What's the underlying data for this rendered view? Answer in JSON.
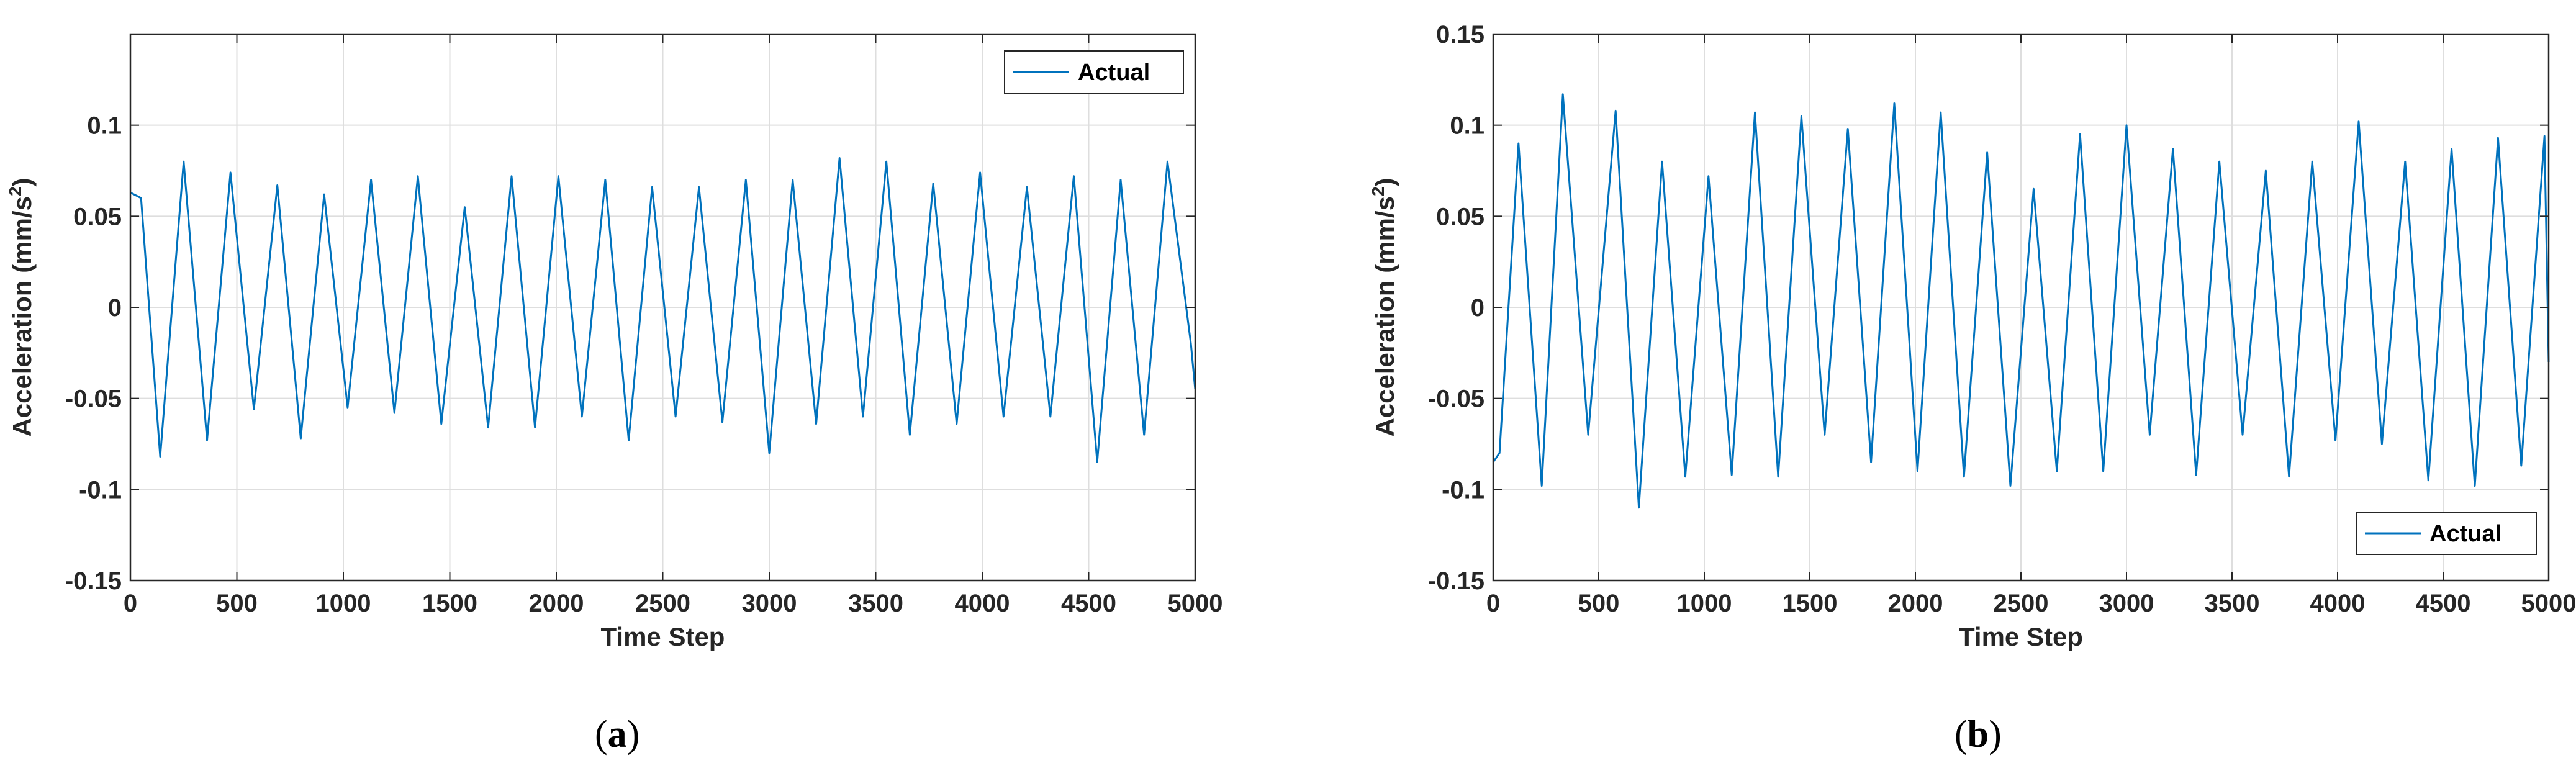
{
  "chart_data": [
    {
      "type": "line",
      "panel": "a",
      "caption_letter": "a",
      "xlabel": "Time Step",
      "ylabel_prefix": "Acceleration (mm/s",
      "ylabel_sup": "2",
      "ylabel_suffix": ")",
      "xlim": [
        0,
        5000
      ],
      "ylim": [
        -0.15,
        0.15
      ],
      "xticks": [
        0,
        500,
        1000,
        1500,
        2000,
        2500,
        3000,
        3500,
        4000,
        4500,
        5000
      ],
      "xtick_labels": [
        "0",
        "500",
        "1000",
        "1500",
        "2000",
        "2500",
        "3000",
        "3500",
        "4000",
        "4500",
        "5000"
      ],
      "yticks": [
        -0.15,
        -0.1,
        -0.05,
        0,
        0.05,
        0.1
      ],
      "ytick_labels": [
        "-0.15",
        "-0.1",
        "-0.05",
        "0",
        "0.05",
        "0.1"
      ],
      "grid": true,
      "legend": "top-right",
      "series": [
        {
          "name": "Actual",
          "color": "#0072BD",
          "x": [
            0,
            50,
            140,
            250,
            360,
            470,
            580,
            690,
            800,
            910,
            1020,
            1130,
            1240,
            1350,
            1460,
            1570,
            1680,
            1790,
            1900,
            2010,
            2120,
            2230,
            2340,
            2450,
            2560,
            2670,
            2780,
            2890,
            3000,
            3110,
            3220,
            3330,
            3440,
            3550,
            3660,
            3770,
            3880,
            3990,
            4100,
            4210,
            4320,
            4430,
            4540,
            4650,
            4760,
            4870,
            4980,
            5000
          ],
          "y": [
            0.063,
            0.06,
            -0.082,
            0.08,
            -0.073,
            0.074,
            -0.056,
            0.067,
            -0.072,
            0.062,
            -0.055,
            0.07,
            -0.058,
            0.072,
            -0.064,
            0.055,
            -0.066,
            0.072,
            -0.066,
            0.072,
            -0.06,
            0.07,
            -0.073,
            0.066,
            -0.06,
            0.066,
            -0.063,
            0.07,
            -0.08,
            0.07,
            -0.064,
            0.082,
            -0.06,
            0.08,
            -0.07,
            0.068,
            -0.064,
            0.074,
            -0.06,
            0.066,
            -0.06,
            0.072,
            -0.085,
            0.07,
            -0.07,
            0.08,
            -0.02,
            -0.045
          ]
        }
      ]
    },
    {
      "type": "line",
      "panel": "b",
      "caption_letter": "b",
      "xlabel": "Time Step",
      "ylabel_prefix": "Acceleration (mm/s",
      "ylabel_sup": "2",
      "ylabel_suffix": ")",
      "xlim": [
        0,
        5000
      ],
      "ylim": [
        -0.15,
        0.15
      ],
      "xticks": [
        0,
        500,
        1000,
        1500,
        2000,
        2500,
        3000,
        3500,
        4000,
        4500,
        5000
      ],
      "xtick_labels": [
        "0",
        "500",
        "1000",
        "1500",
        "2000",
        "2500",
        "3000",
        "3500",
        "4000",
        "4500",
        "5000"
      ],
      "yticks": [
        -0.15,
        -0.1,
        -0.05,
        0,
        0.05,
        0.1,
        0.15
      ],
      "ytick_labels": [
        "-0.15",
        "-0.1",
        "-0.05",
        "0",
        "0.05",
        "0.1",
        "0.15"
      ],
      "grid": true,
      "legend": "bottom-right",
      "series": [
        {
          "name": "Actual",
          "color": "#0072BD",
          "x": [
            0,
            30,
            120,
            230,
            330,
            450,
            580,
            690,
            800,
            910,
            1020,
            1130,
            1240,
            1350,
            1460,
            1570,
            1680,
            1790,
            1900,
            2010,
            2120,
            2230,
            2340,
            2450,
            2560,
            2670,
            2780,
            2890,
            3000,
            3110,
            3220,
            3330,
            3440,
            3550,
            3660,
            3770,
            3880,
            3990,
            4100,
            4210,
            4320,
            4430,
            4540,
            4650,
            4760,
            4870,
            4980,
            5000
          ],
          "y": [
            -0.085,
            -0.08,
            0.09,
            -0.098,
            0.117,
            -0.07,
            0.108,
            -0.11,
            0.08,
            -0.093,
            0.072,
            -0.092,
            0.107,
            -0.093,
            0.105,
            -0.07,
            0.098,
            -0.085,
            0.112,
            -0.09,
            0.107,
            -0.093,
            0.085,
            -0.098,
            0.065,
            -0.09,
            0.095,
            -0.09,
            0.1,
            -0.07,
            0.087,
            -0.092,
            0.08,
            -0.07,
            0.075,
            -0.093,
            0.08,
            -0.073,
            0.102,
            -0.075,
            0.08,
            -0.095,
            0.087,
            -0.098,
            0.093,
            -0.087,
            0.094,
            -0.03
          ]
        }
      ]
    }
  ]
}
